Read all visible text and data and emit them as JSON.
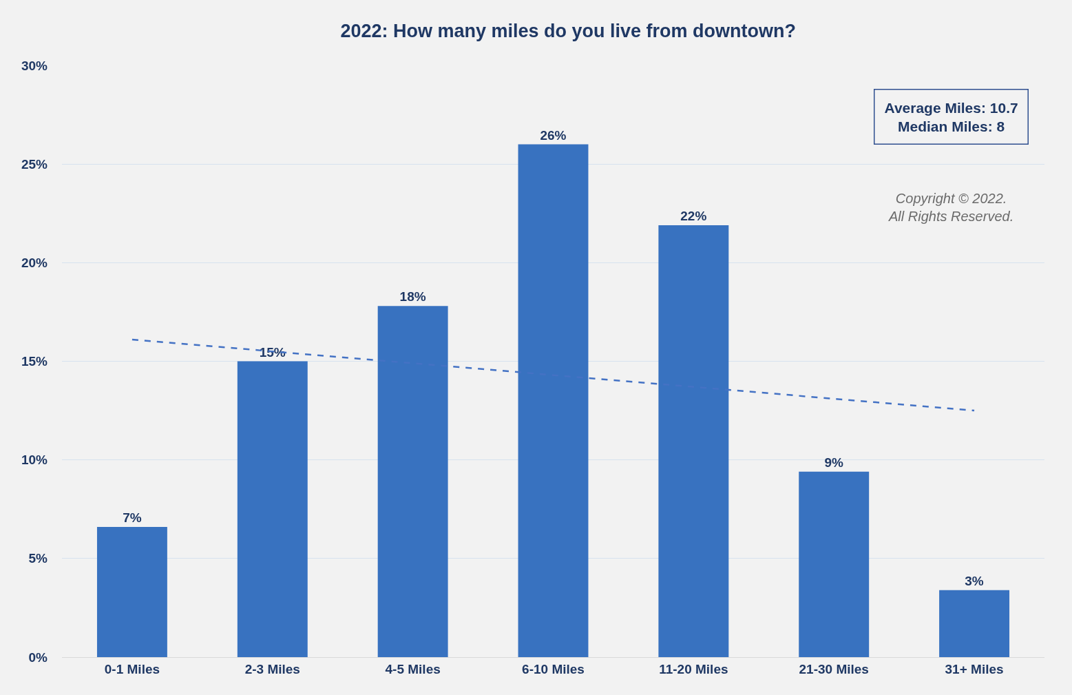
{
  "chart_data": {
    "type": "bar",
    "title": "2022: How many miles do you live from downtown?",
    "categories": [
      "0-1 Miles",
      "2-3 Miles",
      "4-5 Miles",
      "6-10 Miles",
      "11-20 Miles",
      "21-30 Miles",
      "31+ Miles"
    ],
    "series": [
      {
        "color": "#3872c0",
        "values": [
          6.6,
          15,
          17.8,
          26,
          21.9,
          9.4,
          3.4
        ],
        "value_labels": [
          "7%",
          "15%",
          "18%",
          "26%",
          "22%",
          "9%",
          "3%"
        ]
      },
      {
        "type": "line",
        "color": "#4472c4",
        "line_style": "dashed",
        "marker": "none",
        "x": [
          "0-1 Miles",
          "31+ Miles"
        ],
        "values": [
          16.1,
          12.5
        ]
      }
    ],
    "ylim": [
      0,
      30
    ],
    "yticks": [
      {
        "value": 0,
        "label": "0%"
      },
      {
        "value": 5,
        "label": "5%"
      },
      {
        "value": 10,
        "label": "10%"
      },
      {
        "value": 15,
        "label": "15%"
      },
      {
        "value": 20,
        "label": "20%"
      },
      {
        "value": 25,
        "label": "25%"
      },
      {
        "value": 30,
        "label": "30%"
      }
    ],
    "grid": "y",
    "annotations": [
      "Average Miles: 10.7\nMedian Miles: 8",
      "Copyright © 2022.\nAll Rights Reserved."
    ]
  }
}
